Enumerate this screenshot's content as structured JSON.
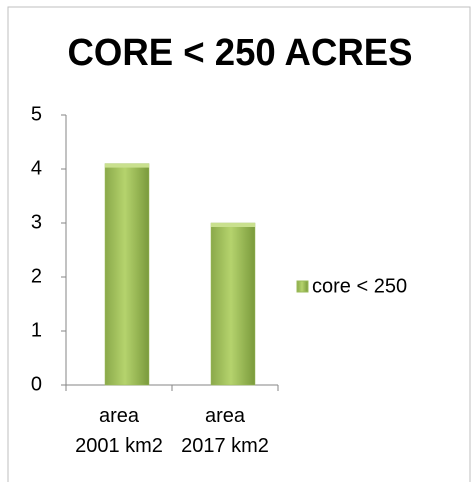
{
  "chart_data": {
    "type": "bar",
    "title": "CORE < 250 ACRES",
    "categories": [
      "area 2001 km2",
      "area 2017 km2"
    ],
    "series": [
      {
        "name": "core < 250",
        "color": "#9bbb59",
        "values": [
          4.1,
          3.0
        ]
      }
    ],
    "ylim": [
      0,
      5
    ],
    "yticks": [
      0,
      1,
      2,
      3,
      4,
      5
    ],
    "grid": false,
    "legend": "right"
  }
}
